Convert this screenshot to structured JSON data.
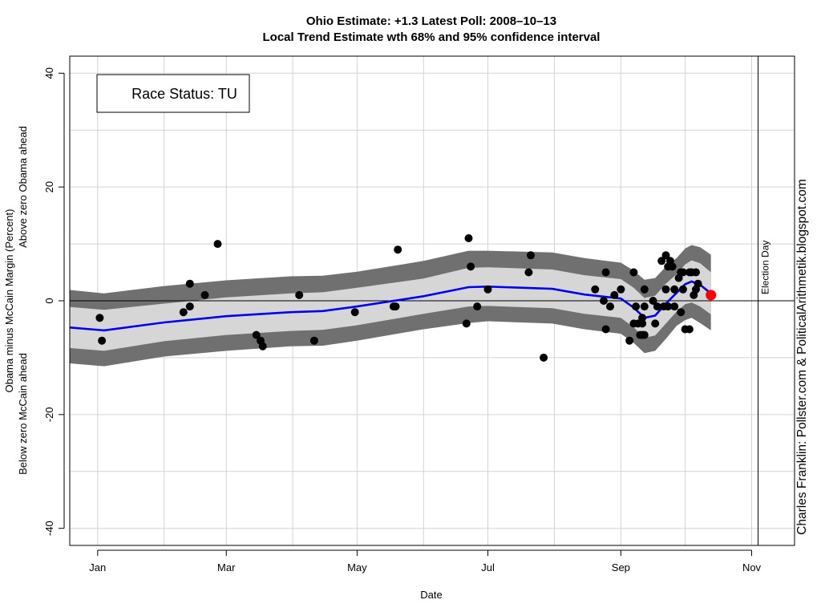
{
  "chart_data": {
    "type": "line",
    "title": "Ohio Estimate: +1.3     Latest Poll: 2008–10–13",
    "subtitle": "Local Trend Estimate wth 68% and 95% confidence interval",
    "xlabel": "Date",
    "ylabel_line1": "Obama minus McCain Margin (Percent)",
    "ylabel_line2_above": "Above zero Obama ahead",
    "ylabel_line2_below": "Below zero McCain ahead",
    "credit": "Charles Franklin: Pollster.com & PoliticalArithmetik.blogspot.com",
    "annotation": "Race Status: TU",
    "event_label": "Election Day",
    "xlim": [
      "2007-12-19",
      "2008-11-21"
    ],
    "ylim": [
      -43,
      43
    ],
    "x_ticks": [
      {
        "date": "2008-01-01",
        "label": "Jan"
      },
      {
        "date": "2008-03-01",
        "label": "Mar"
      },
      {
        "date": "2008-05-01",
        "label": "May"
      },
      {
        "date": "2008-07-01",
        "label": "Jul"
      },
      {
        "date": "2008-09-01",
        "label": "Sep"
      },
      {
        "date": "2008-11-01",
        "label": "Nov"
      }
    ],
    "y_ticks": [
      -40,
      -20,
      0,
      20,
      40
    ],
    "x_grid_dates": [
      "2008-01-01",
      "2008-02-01",
      "2008-03-01",
      "2008-04-01",
      "2008-05-01",
      "2008-06-01",
      "2008-07-01",
      "2008-08-01",
      "2008-09-01",
      "2008-10-01",
      "2008-11-01"
    ],
    "y_grid": [
      -40,
      -30,
      -20,
      -10,
      0,
      10,
      20,
      30,
      40
    ],
    "grid": true,
    "election_day": "2008-11-04",
    "trend": {
      "dates": [
        "2007-12-19",
        "2008-01-04",
        "2008-02-01",
        "2008-03-01",
        "2008-03-31",
        "2008-04-15",
        "2008-05-01",
        "2008-06-01",
        "2008-06-22",
        "2008-07-01",
        "2008-07-31",
        "2008-08-15",
        "2008-09-01",
        "2008-09-07",
        "2008-09-12",
        "2008-09-17",
        "2008-09-22",
        "2008-09-27",
        "2008-10-01",
        "2008-10-04",
        "2008-10-08",
        "2008-10-13"
      ],
      "estimate": [
        -4.7,
        -5.2,
        -3.8,
        -2.7,
        -2.0,
        -1.8,
        -1.0,
        0.8,
        2.4,
        2.5,
        2.1,
        1.1,
        0.4,
        -1.2,
        -3.0,
        -2.6,
        -0.5,
        1.4,
        2.9,
        3.4,
        2.8,
        1.3
      ],
      "ci68_lower": [
        -8.3,
        -8.8,
        -7.1,
        -6.0,
        -5.3,
        -5.1,
        -4.3,
        -2.3,
        -1.0,
        -0.9,
        -1.3,
        -2.3,
        -3.0,
        -4.7,
        -6.5,
        -6.1,
        -4.0,
        -1.9,
        -0.6,
        -0.3,
        -1.0,
        -2.4
      ],
      "ci68_upper": [
        -1.1,
        -1.6,
        -0.5,
        0.6,
        1.3,
        1.5,
        2.3,
        3.9,
        5.8,
        5.9,
        5.5,
        4.5,
        3.8,
        2.3,
        0.5,
        0.9,
        3.0,
        4.7,
        6.4,
        7.1,
        6.6,
        5.0
      ],
      "ci95_lower": [
        -11.0,
        -11.5,
        -9.8,
        -8.8,
        -8.0,
        -7.9,
        -7.0,
        -5.0,
        -3.9,
        -3.6,
        -4.0,
        -5.0,
        -5.8,
        -7.4,
        -9.2,
        -8.8,
        -6.7,
        -4.4,
        -3.4,
        -3.0,
        -3.9,
        -5.2
      ],
      "ci95_upper": [
        1.9,
        1.3,
        2.6,
        3.6,
        4.3,
        4.4,
        5.1,
        7.0,
        8.8,
        8.8,
        8.5,
        7.5,
        6.7,
        5.3,
        3.7,
        4.0,
        6.0,
        7.5,
        9.2,
        9.8,
        9.4,
        8.1
      ]
    },
    "polls": {
      "dates": [
        "2008-01-02",
        "2008-01-03",
        "2008-02-10",
        "2008-02-13",
        "2008-02-13",
        "2008-02-20",
        "2008-02-26",
        "2008-03-15",
        "2008-03-17",
        "2008-03-18",
        "2008-04-04",
        "2008-04-11",
        "2008-04-30",
        "2008-05-18",
        "2008-05-19",
        "2008-05-20",
        "2008-06-21",
        "2008-06-22",
        "2008-06-23",
        "2008-06-26",
        "2008-07-01",
        "2008-07-20",
        "2008-07-21",
        "2008-07-27",
        "2008-08-20",
        "2008-08-24",
        "2008-08-25",
        "2008-08-25",
        "2008-08-27",
        "2008-08-29",
        "2008-09-01",
        "2008-09-05",
        "2008-09-07",
        "2008-09-07",
        "2008-09-08",
        "2008-09-09",
        "2008-09-10",
        "2008-09-11",
        "2008-09-11",
        "2008-09-11",
        "2008-09-12",
        "2008-09-12",
        "2008-09-12",
        "2008-09-16",
        "2008-09-17",
        "2008-09-18",
        "2008-09-20",
        "2008-09-21",
        "2008-09-22",
        "2008-09-22",
        "2008-09-23",
        "2008-09-23",
        "2008-09-24",
        "2008-09-25",
        "2008-09-26",
        "2008-09-26",
        "2008-09-28",
        "2008-09-29",
        "2008-09-29",
        "2008-09-30",
        "2008-09-30",
        "2008-10-01",
        "2008-10-03",
        "2008-10-03",
        "2008-10-04",
        "2008-10-05",
        "2008-10-06",
        "2008-10-06",
        "2008-10-07"
      ],
      "values": [
        -3,
        -7,
        -2,
        3,
        -1,
        1,
        10,
        -6,
        -7,
        -8,
        1,
        -7,
        -2,
        -1,
        -1,
        9,
        -4,
        11,
        6,
        -1,
        2,
        5,
        8,
        -10,
        2,
        0,
        -5,
        5,
        -1,
        1,
        2,
        -7,
        -4,
        5,
        -1,
        -4,
        -6,
        -3,
        -4,
        -6,
        2,
        -1,
        -6,
        0,
        -4,
        -1,
        7,
        -1,
        2,
        8,
        -1,
        6,
        7,
        6,
        -1,
        2,
        4,
        5,
        -2,
        5,
        2,
        -5,
        5,
        -5,
        5,
        1,
        2,
        5,
        3
      ],
      "latest_date": "2008-10-13",
      "latest_value": 1
    }
  },
  "colors": {
    "trend_line": "#0000ee",
    "ci95_band": "#707070",
    "ci68_band": "#d6d6d6",
    "points": "#000000",
    "latest_point": "#ff0000",
    "grid": "#d3d3d3",
    "credit_text": "#0000cc"
  }
}
